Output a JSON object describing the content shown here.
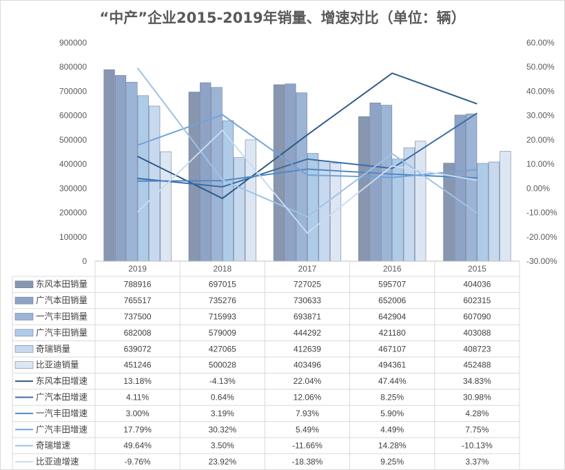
{
  "chart_data": {
    "type": "bar",
    "title": "“中产”企业2015-2019年销量、增速对比（单位：辆）",
    "categories": [
      "2019",
      "2018",
      "2017",
      "2016",
      "2015"
    ],
    "y_left": {
      "ylim": [
        0,
        900000
      ],
      "ticks": [
        "0",
        "100000",
        "200000",
        "300000",
        "400000",
        "500000",
        "600000",
        "700000",
        "800000",
        "900000"
      ]
    },
    "y_right": {
      "ylim": [
        -30,
        60
      ],
      "ticks": [
        "-30.00%",
        "-20.00%",
        "-10.00%",
        "0.00%",
        "10.00%",
        "20.00%",
        "30.00%",
        "40.00%",
        "50.00%",
        "60.00%"
      ]
    },
    "grid": false,
    "legend": "data-table",
    "bar_series": [
      {
        "name": "东风本田销量",
        "color": "#8896b0",
        "values": [
          788916,
          697015,
          727025,
          595707,
          404036
        ],
        "labels": [
          "788916",
          "697015",
          "727025",
          "595707",
          "404036"
        ]
      },
      {
        "name": "广汽本田销量",
        "color": "#8ea3c6",
        "values": [
          765517,
          735276,
          730633,
          652006,
          602315
        ],
        "labels": [
          "765517",
          "735276",
          "730633",
          "652006",
          "602315"
        ]
      },
      {
        "name": "一汽丰田销量",
        "color": "#9cb4d6",
        "values": [
          737500,
          715993,
          693871,
          642904,
          607090
        ],
        "labels": [
          "737500",
          "715993",
          "693871",
          "642904",
          "607090"
        ]
      },
      {
        "name": "广汽丰田销量",
        "color": "#aecbe8",
        "values": [
          682008,
          579009,
          444292,
          421180,
          403088
        ],
        "labels": [
          "682008",
          "579009",
          "444292",
          "421180",
          "403088"
        ]
      },
      {
        "name": "奇瑞销量",
        "color": "#c7d9ef",
        "values": [
          639072,
          427065,
          412639,
          467107,
          408723
        ],
        "labels": [
          "639072",
          "427065",
          "412639",
          "467107",
          "408723"
        ]
      },
      {
        "name": "比亚迪销量",
        "color": "#dde7f4",
        "values": [
          451246,
          500028,
          403496,
          494361,
          452488
        ],
        "labels": [
          "451246",
          "500028",
          "403496",
          "494361",
          "452488"
        ]
      }
    ],
    "line_series": [
      {
        "name": "东风本田增速",
        "color": "#2e5a87",
        "values": [
          13.18,
          -4.13,
          22.04,
          47.44,
          34.83
        ],
        "labels": [
          "13.18%",
          "-4.13%",
          "22.04%",
          "47.44%",
          "34.83%"
        ]
      },
      {
        "name": "广汽本田增速",
        "color": "#3b6ca3",
        "values": [
          4.11,
          0.64,
          12.06,
          8.25,
          30.98
        ],
        "labels": [
          "4.11%",
          "0.64%",
          "12.06%",
          "8.25%",
          "30.98%"
        ]
      },
      {
        "name": "一汽丰田增速",
        "color": "#4f88c6",
        "values": [
          3.0,
          3.19,
          7.93,
          5.9,
          4.28
        ],
        "labels": [
          "3.00%",
          "3.19%",
          "7.93%",
          "5.90%",
          "4.28%"
        ]
      },
      {
        "name": "广汽丰田增速",
        "color": "#6fa3d8",
        "values": [
          17.79,
          30.32,
          5.49,
          4.49,
          7.75
        ],
        "labels": [
          "17.79%",
          "30.32%",
          "5.49%",
          "4.49%",
          "7.75%"
        ]
      },
      {
        "name": "奇瑞增速",
        "color": "#9fc2e6",
        "values": [
          49.64,
          3.5,
          -11.66,
          14.28,
          -10.13
        ],
        "labels": [
          "49.64%",
          "3.50%",
          "-11.66%",
          "14.28%",
          "-10.13%"
        ]
      },
      {
        "name": "比亚迪增速",
        "color": "#c9dcf0",
        "values": [
          -9.76,
          23.92,
          -18.38,
          9.25,
          3.37
        ],
        "labels": [
          "-9.76%",
          "23.92%",
          "-18.38%",
          "9.25%",
          "3.37%"
        ]
      }
    ]
  }
}
